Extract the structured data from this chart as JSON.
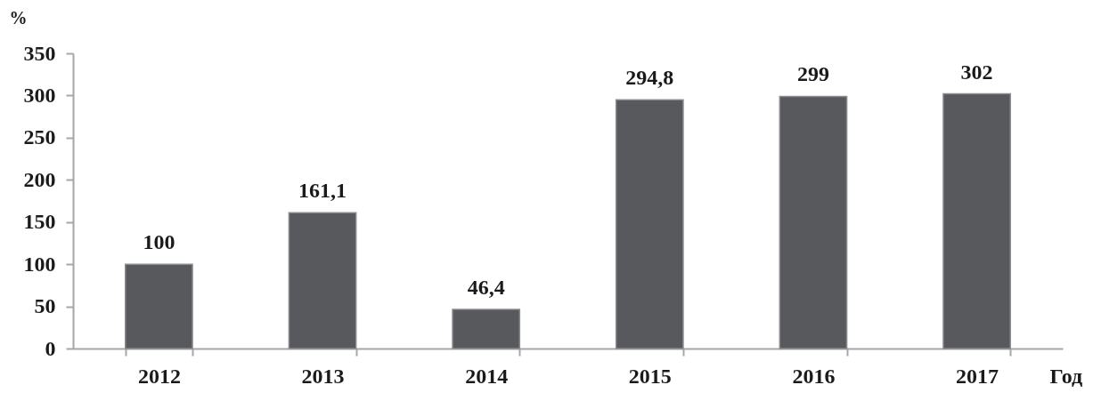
{
  "chart_data": {
    "type": "bar",
    "xlabel": "Год",
    "ylabel": "%",
    "categories": [
      "2012",
      "2013",
      "2014",
      "2015",
      "2016",
      "2017"
    ],
    "values": [
      100,
      161.1,
      46.4,
      294.8,
      299,
      302
    ],
    "value_labels": [
      "100",
      "161,1",
      "46,4",
      "294,8",
      "299",
      "302"
    ],
    "color": "#58595d",
    "ylim": [
      0,
      350
    ],
    "yticks": [
      0,
      50,
      100,
      150,
      200,
      250,
      300,
      350
    ]
  }
}
